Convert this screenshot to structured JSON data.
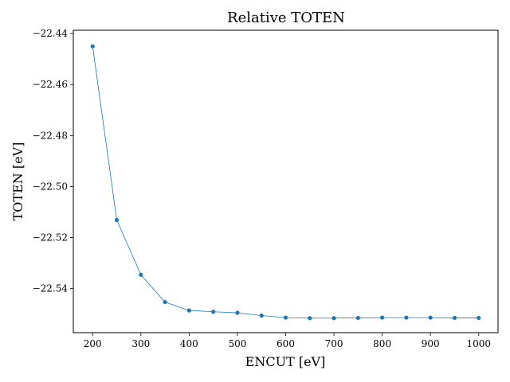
{
  "chart_data": {
    "type": "line",
    "title": "Relative TOTEN",
    "xlabel": "ENCUT [eV]",
    "ylabel": "TOTEN [eV]",
    "xlim": [
      160,
      1040
    ],
    "ylim": [
      -22.5573,
      -22.4387
    ],
    "xticks": [
      200,
      300,
      400,
      500,
      600,
      700,
      800,
      900,
      1000
    ],
    "xtick_labels": [
      "200",
      "300",
      "400",
      "500",
      "600",
      "700",
      "800",
      "900",
      "1000"
    ],
    "yticks": [
      -22.44,
      -22.46,
      -22.48,
      -22.5,
      -22.52,
      -22.54
    ],
    "ytick_labels": [
      "−22.44",
      "−22.46",
      "−22.48",
      "−22.50",
      "−22.52",
      "−22.54"
    ],
    "grid": false,
    "series": [
      {
        "color": "#1f77b4",
        "x": [
          200,
          250,
          300,
          350,
          400,
          450,
          500,
          550,
          600,
          650,
          700,
          750,
          800,
          850,
          900,
          950,
          1000
        ],
        "y": [
          -22.445,
          -22.5131,
          -22.5346,
          -22.5453,
          -22.5486,
          -22.5491,
          -22.5495,
          -22.5506,
          -22.5514,
          -22.5516,
          -22.5516,
          -22.5515,
          -22.5514,
          -22.5514,
          -22.5514,
          -22.5515,
          -22.5515
        ]
      }
    ]
  }
}
